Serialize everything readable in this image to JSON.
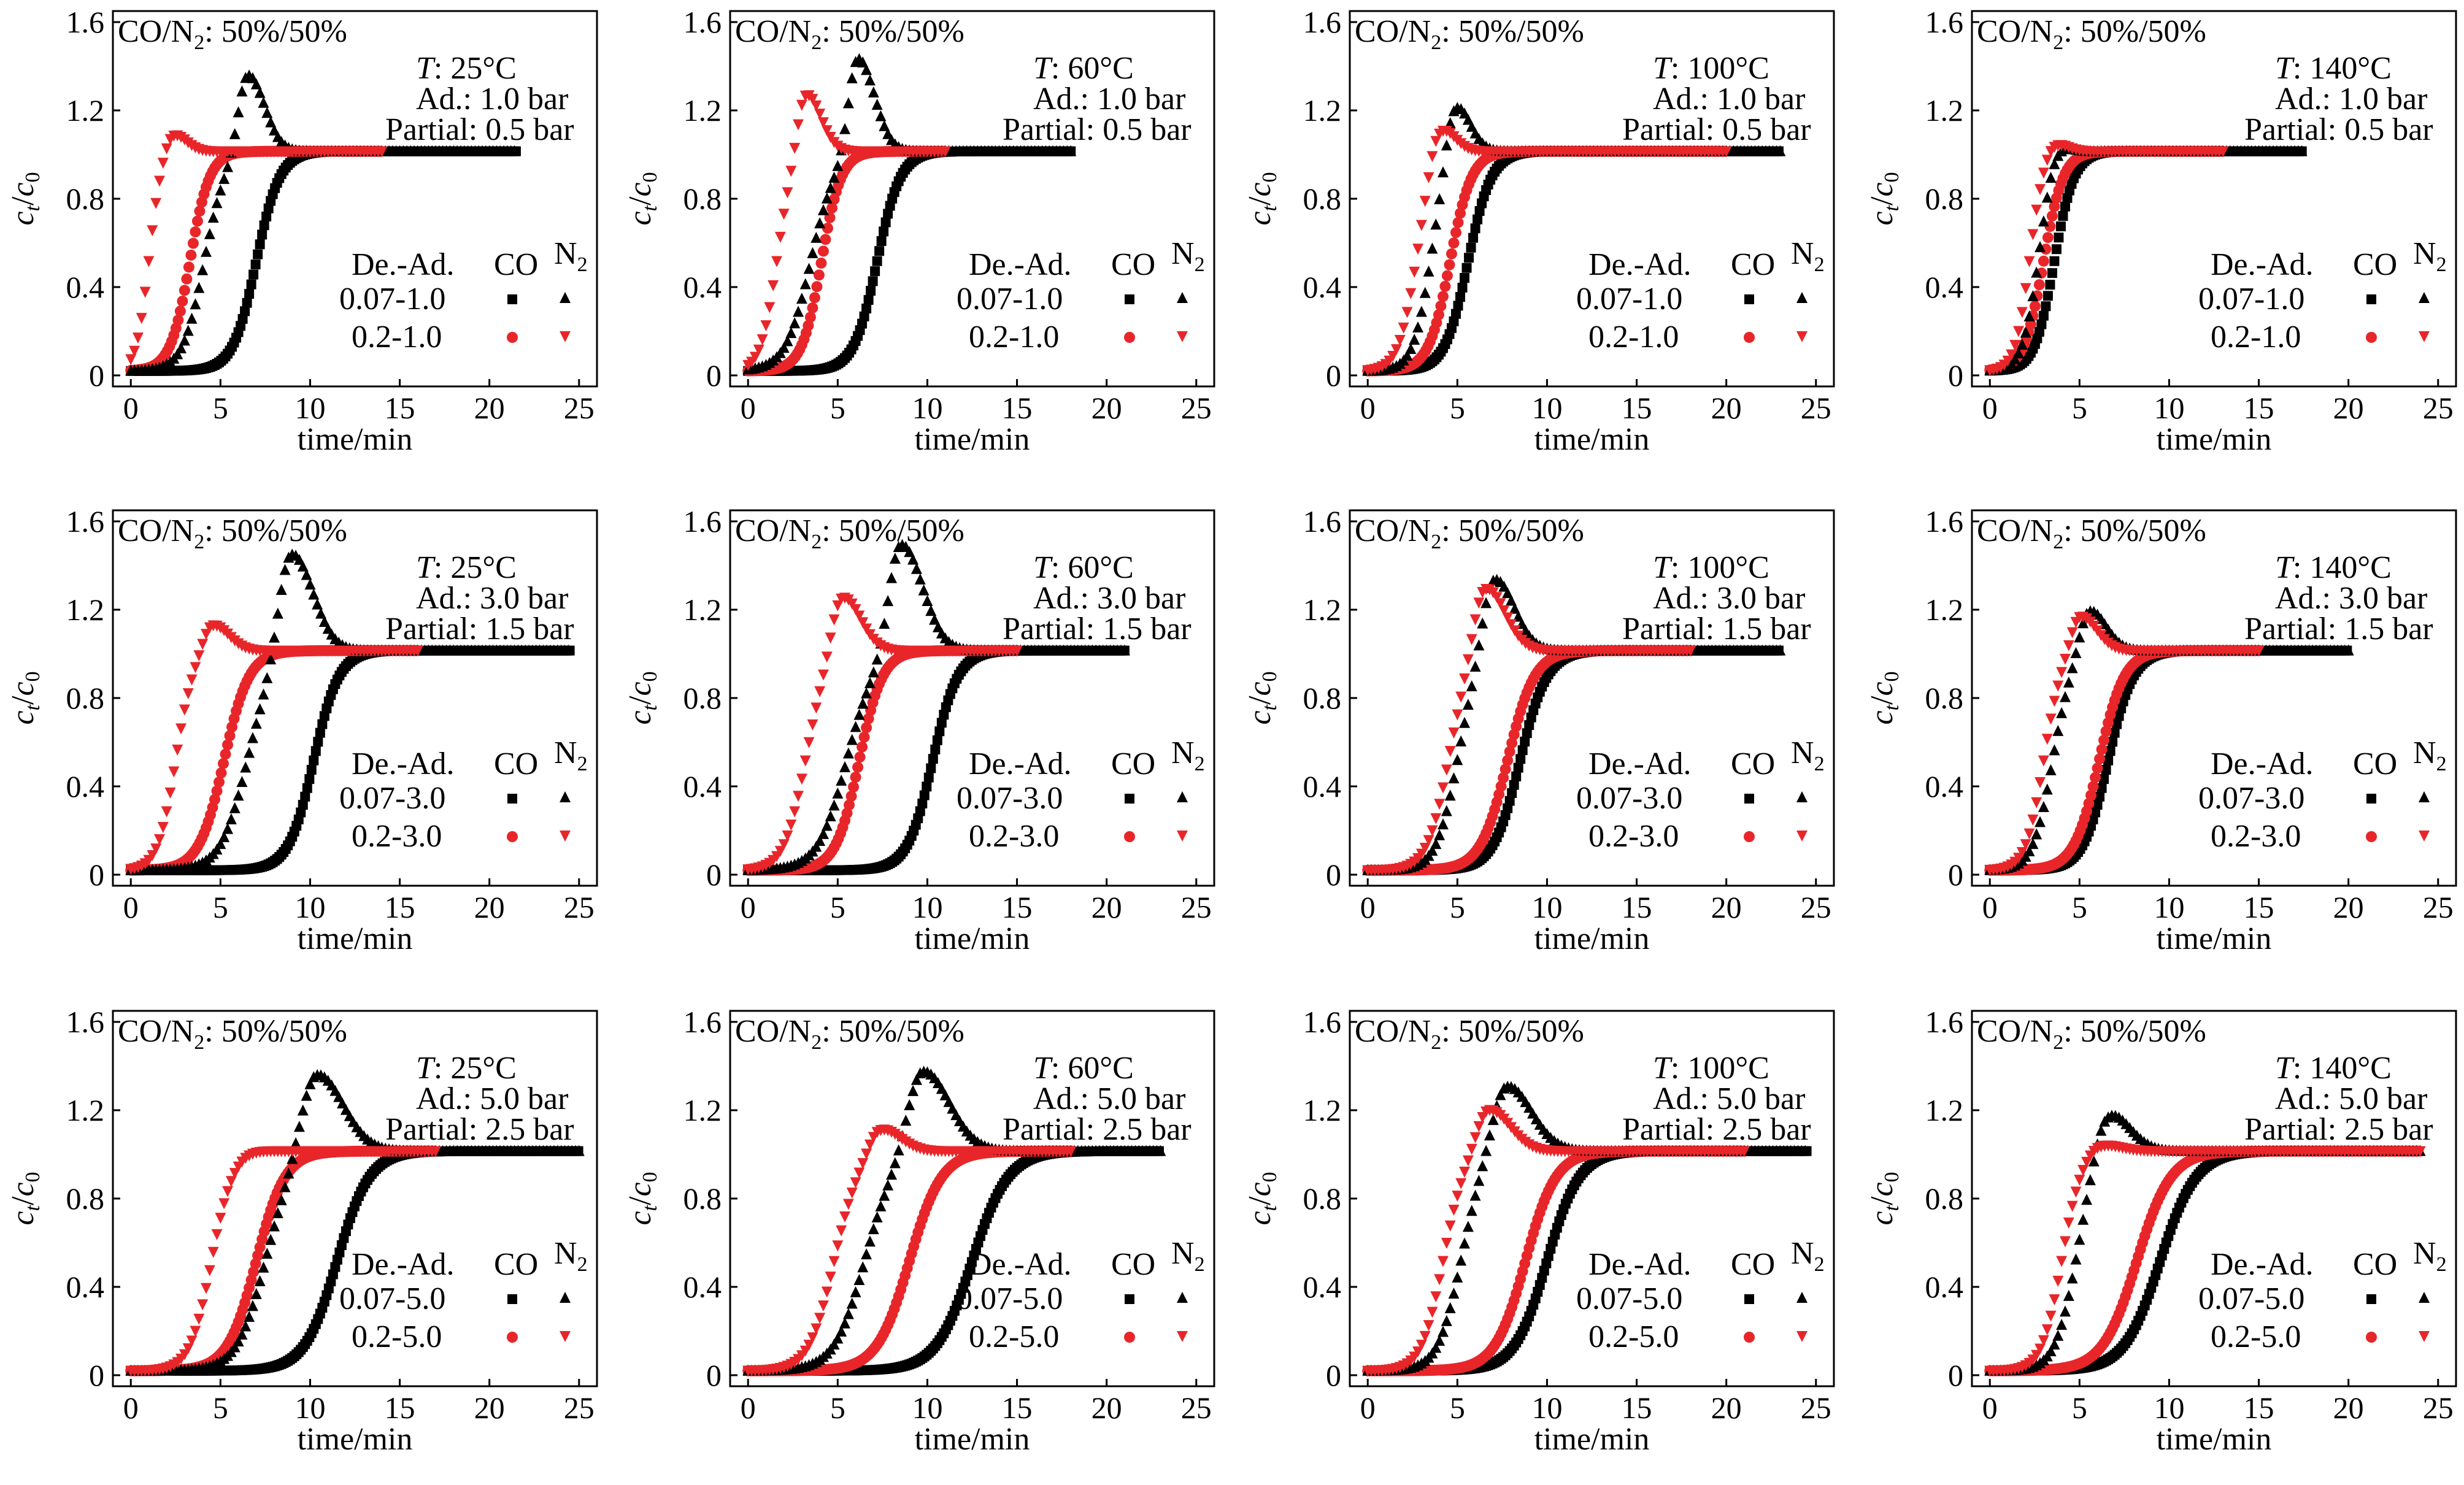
{
  "figure": {
    "shared": {
      "gas_label": "CO/N",
      "gas_sub": "2",
      "gas_ratio": ": 50%/50%",
      "xlabel": "time/min",
      "ylabel_c": "c",
      "ylabel_t": "t",
      "ylabel_slash": "/",
      "ylabel_0": "0",
      "legend_header": "De.-Ad.",
      "legend_co": "CO",
      "legend_n2": "N",
      "legend_n2_sub": "2",
      "temp_prefix": "T",
      "ad_prefix": "Ad.: ",
      "partial_prefix": "Partial: ",
      "x_ticks": [
        "0",
        "5",
        "10",
        "15",
        "20",
        "25"
      ],
      "y_ticks": [
        "0",
        "0.4",
        "0.8",
        "1.2",
        "1.6"
      ]
    },
    "colors": {
      "low_desorption": "#000000",
      "high_desorption": "#e8262a",
      "axis": "#000000"
    },
    "markers": {
      "co": "square / circle",
      "n2": "triangle-up / triangle-down"
    }
  },
  "chart_data": [
    {
      "type": "scatter",
      "row": 0,
      "col": 0,
      "temperature": ": 25°C",
      "ad_pressure": "1.0 bar",
      "partial_pressure": "0.5 bar",
      "ad_label": "1.0",
      "legend_rows": [
        "0.07-1.0",
        "0.2-1.0"
      ],
      "xlim": [
        -1,
        26
      ],
      "ylim": [
        -0.05,
        1.65
      ],
      "x_end": [
        21.5,
        14.0
      ],
      "series": [
        {
          "name": "0.07-1.0 CO",
          "gas": "CO",
          "desorption": "0.07",
          "t_bt": 7.0,
          "width": 0.65,
          "peak_t": null,
          "peak_h": null,
          "peak_w": 1.0
        },
        {
          "name": "0.07-1.0 N2",
          "gas": "N2",
          "desorption": "0.07",
          "t_bt": 4.1,
          "width": 0.6,
          "peak_t": 6.5,
          "peak_h": 0.36,
          "peak_w": 1.0
        },
        {
          "name": "0.2-1.0 CO",
          "gas": "CO",
          "desorption": "0.2",
          "t_bt": 3.3,
          "width": 0.55,
          "peak_t": null,
          "peak_h": null,
          "peak_w": 1.0
        },
        {
          "name": "0.2-1.0 N2",
          "gas": "N2",
          "desorption": "0.2",
          "t_bt": 1.0,
          "width": 0.35,
          "peak_t": 2.3,
          "peak_h": 0.09,
          "peak_w": 0.8
        }
      ]
    },
    {
      "type": "scatter",
      "row": 0,
      "col": 1,
      "temperature": ": 60°C",
      "ad_pressure": "1.0 bar",
      "partial_pressure": "0.5 bar",
      "ad_label": "1.0",
      "legend_rows": [
        "0.07-1.0",
        "0.2-1.0"
      ],
      "xlim": [
        -1,
        26
      ],
      "ylim": [
        -0.05,
        1.65
      ],
      "x_end": [
        18.0,
        11.0
      ],
      "series": [
        {
          "name": "0.07-1.0 CO",
          "gas": "CO",
          "desorption": "0.07",
          "t_bt": 7.2,
          "width": 0.65,
          "peak_t": null,
          "peak_h": null,
          "peak_w": 1.0
        },
        {
          "name": "0.07-1.0 N2",
          "gas": "N2",
          "desorption": "0.07",
          "t_bt": 3.5,
          "width": 0.7,
          "peak_t": 6.1,
          "peak_h": 0.44,
          "peak_w": 1.0
        },
        {
          "name": "0.2-1.0 CO",
          "gas": "CO",
          "desorption": "0.2",
          "t_bt": 4.1,
          "width": 0.55,
          "peak_t": null,
          "peak_h": null,
          "peak_w": 1.0
        },
        {
          "name": "0.2-1.0 N2",
          "gas": "N2",
          "desorption": "0.2",
          "t_bt": 1.6,
          "width": 0.45,
          "peak_t": 3.2,
          "peak_h": 0.28,
          "peak_w": 0.9
        }
      ]
    },
    {
      "type": "scatter",
      "row": 0,
      "col": 2,
      "temperature": ": 100°C",
      "ad_pressure": "1.0 bar",
      "partial_pressure": "0.5 bar",
      "ad_label": "1.0",
      "legend_rows": [
        "0.07-1.0",
        "0.2-1.0"
      ],
      "xlim": [
        -1,
        26
      ],
      "ylim": [
        -0.05,
        1.65
      ],
      "x_end": [
        23.0,
        20.0
      ],
      "series": [
        {
          "name": "0.07-1.0 CO",
          "gas": "CO",
          "desorption": "0.07",
          "t_bt": 5.6,
          "width": 0.65,
          "peak_t": null,
          "peak_h": null,
          "peak_w": 1.0
        },
        {
          "name": "0.07-1.0 N2",
          "gas": "N2",
          "desorption": "0.07",
          "t_bt": 3.5,
          "width": 0.5,
          "peak_t": 4.8,
          "peak_h": 0.25,
          "peak_w": 0.9
        },
        {
          "name": "0.2-1.0 CO",
          "gas": "CO",
          "desorption": "0.2",
          "t_bt": 4.6,
          "width": 0.6,
          "peak_t": null,
          "peak_h": null,
          "peak_w": 1.0
        },
        {
          "name": "0.2-1.0 N2",
          "gas": "N2",
          "desorption": "0.2",
          "t_bt": 2.7,
          "width": 0.5,
          "peak_t": 3.9,
          "peak_h": 0.15,
          "peak_w": 0.9
        }
      ]
    },
    {
      "type": "scatter",
      "row": 0,
      "col": 3,
      "temperature": ": 140°C",
      "ad_pressure": "1.0 bar",
      "partial_pressure": "0.5 bar",
      "ad_label": "1.0",
      "legend_rows": [
        "0.07-1.0",
        "0.2-1.0"
      ],
      "xlim": [
        -1,
        26
      ],
      "ylim": [
        -0.05,
        1.65
      ],
      "x_end": [
        17.5,
        13.0
      ],
      "series": [
        {
          "name": "0.07-1.0 CO",
          "gas": "CO",
          "desorption": "0.07",
          "t_bt": 3.6,
          "width": 0.55,
          "peak_t": null,
          "peak_h": null,
          "peak_w": 1.0
        },
        {
          "name": "0.07-1.0 N2",
          "gas": "N2",
          "desorption": "0.07",
          "t_bt": 2.7,
          "width": 0.45,
          "peak_t": 3.6,
          "peak_h": 0.06,
          "peak_w": 0.8
        },
        {
          "name": "0.2-1.0 CO",
          "gas": "CO",
          "desorption": "0.2",
          "t_bt": 3.0,
          "width": 0.55,
          "peak_t": null,
          "peak_h": null,
          "peak_w": 1.0
        },
        {
          "name": "0.2-1.0 N2",
          "gas": "N2",
          "desorption": "0.2",
          "t_bt": 2.2,
          "width": 0.4,
          "peak_t": 3.5,
          "peak_h": 0.05,
          "peak_w": 0.8
        }
      ]
    },
    {
      "type": "scatter",
      "row": 1,
      "col": 0,
      "temperature": ": 25°C",
      "ad_pressure": "3.0 bar",
      "partial_pressure": "1.5 bar",
      "ad_label": "3.0",
      "legend_rows": [
        "0.07-3.0",
        "0.2-3.0"
      ],
      "xlim": [
        -1,
        26
      ],
      "ylim": [
        -0.05,
        1.65
      ],
      "x_end": [
        24.5,
        16.0
      ],
      "series": [
        {
          "name": "0.07-3.0 CO",
          "gas": "CO",
          "desorption": "0.07",
          "t_bt": 10.2,
          "width": 0.7,
          "peak_t": null,
          "peak_h": null,
          "peak_w": 1.0
        },
        {
          "name": "0.07-3.0 N2",
          "gas": "N2",
          "desorption": "0.07",
          "t_bt": 6.5,
          "width": 0.75,
          "peak_t": 8.9,
          "peak_h": 0.47,
          "peak_w": 1.3
        },
        {
          "name": "0.2-3.0 CO",
          "gas": "CO",
          "desorption": "0.2",
          "t_bt": 5.2,
          "width": 0.7,
          "peak_t": null,
          "peak_h": null,
          "peak_w": 1.0
        },
        {
          "name": "0.2-3.0 N2",
          "gas": "N2",
          "desorption": "0.2",
          "t_bt": 2.5,
          "width": 0.5,
          "peak_t": 4.5,
          "peak_h": 0.13,
          "peak_w": 1.0
        }
      ]
    },
    {
      "type": "scatter",
      "row": 1,
      "col": 1,
      "temperature": ": 60°C",
      "ad_pressure": "3.0 bar",
      "partial_pressure": "1.5 bar",
      "ad_label": "3.0",
      "legend_rows": [
        "0.07-3.0",
        "0.2-3.0"
      ],
      "xlim": [
        -1,
        26
      ],
      "ylim": [
        -0.05,
        1.65
      ],
      "x_end": [
        21.0,
        15.0
      ],
      "series": [
        {
          "name": "0.07-3.0 CO",
          "gas": "CO",
          "desorption": "0.07",
          "t_bt": 10.3,
          "width": 0.7,
          "peak_t": null,
          "peak_h": null,
          "peak_w": 1.0
        },
        {
          "name": "0.07-3.0 N2",
          "gas": "N2",
          "desorption": "0.07",
          "t_bt": 5.5,
          "width": 0.8,
          "peak_t": 8.5,
          "peak_h": 0.5,
          "peak_w": 1.3
        },
        {
          "name": "0.2-3.0 CO",
          "gas": "CO",
          "desorption": "0.2",
          "t_bt": 6.2,
          "width": 0.65,
          "peak_t": null,
          "peak_h": null,
          "peak_w": 1.0
        },
        {
          "name": "0.2-3.0 N2",
          "gas": "N2",
          "desorption": "0.2",
          "t_bt": 3.2,
          "width": 0.6,
          "peak_t": 5.2,
          "peak_h": 0.27,
          "peak_w": 1.1
        }
      ]
    },
    {
      "type": "scatter",
      "row": 1,
      "col": 2,
      "temperature": ": 100°C",
      "ad_pressure": "3.0 bar",
      "partial_pressure": "1.5 bar",
      "ad_label": "3.0",
      "legend_rows": [
        "0.07-3.0",
        "0.2-3.0"
      ],
      "xlim": [
        -1,
        26
      ],
      "ylim": [
        -0.05,
        1.65
      ],
      "x_end": [
        23.0,
        18.0
      ],
      "series": [
        {
          "name": "0.07-3.0 CO",
          "gas": "CO",
          "desorption": "0.07",
          "t_bt": 8.5,
          "width": 0.75,
          "peak_t": null,
          "peak_h": null,
          "peak_w": 1.0
        },
        {
          "name": "0.07-3.0 N2",
          "gas": "N2",
          "desorption": "0.07",
          "t_bt": 5.0,
          "width": 0.6,
          "peak_t": 7.0,
          "peak_h": 0.35,
          "peak_w": 1.2
        },
        {
          "name": "0.2-3.0 CO",
          "gas": "CO",
          "desorption": "0.2",
          "t_bt": 7.8,
          "width": 0.75,
          "peak_t": null,
          "peak_h": null,
          "peak_w": 1.0
        },
        {
          "name": "0.2-3.0 N2",
          "gas": "N2",
          "desorption": "0.2",
          "t_bt": 4.5,
          "width": 0.6,
          "peak_t": 6.5,
          "peak_h": 0.31,
          "peak_w": 1.2
        }
      ]
    },
    {
      "type": "scatter",
      "row": 1,
      "col": 3,
      "temperature": ": 140°C",
      "ad_pressure": "3.0 bar",
      "partial_pressure": "1.5 bar",
      "ad_label": "3.0",
      "legend_rows": [
        "0.07-3.0",
        "0.2-3.0"
      ],
      "xlim": [
        -1,
        26
      ],
      "ylim": [
        -0.05,
        1.65
      ],
      "x_end": [
        20.0,
        15.0
      ],
      "series": [
        {
          "name": "0.07-3.0 CO",
          "gas": "CO",
          "desorption": "0.07",
          "t_bt": 6.6,
          "width": 0.7,
          "peak_t": null,
          "peak_h": null,
          "peak_w": 1.0
        },
        {
          "name": "0.07-3.0 N2",
          "gas": "N2",
          "desorption": "0.07",
          "t_bt": 3.5,
          "width": 0.55,
          "peak_t": 5.5,
          "peak_h": 0.2,
          "peak_w": 1.0
        },
        {
          "name": "0.2-3.0 CO",
          "gas": "CO",
          "desorption": "0.2",
          "t_bt": 6.1,
          "width": 0.7,
          "peak_t": null,
          "peak_h": null,
          "peak_w": 1.0
        },
        {
          "name": "0.2-3.0 N2",
          "gas": "N2",
          "desorption": "0.2",
          "t_bt": 3.0,
          "width": 0.5,
          "peak_t": 5.0,
          "peak_h": 0.17,
          "peak_w": 1.0
        }
      ]
    },
    {
      "type": "scatter",
      "row": 2,
      "col": 0,
      "temperature": ": 25°C",
      "ad_pressure": "5.0 bar",
      "partial_pressure": "2.5 bar",
      "ad_label": "5.0",
      "legend_rows": [
        "0.07-5.0",
        "0.2-5.0"
      ],
      "xlim": [
        -1,
        26
      ],
      "ylim": [
        -0.05,
        1.65
      ],
      "x_end": [
        25.0,
        17.0
      ],
      "series": [
        {
          "name": "0.07-5.0 CO",
          "gas": "CO",
          "desorption": "0.07",
          "t_bt": 11.5,
          "width": 0.9,
          "peak_t": null,
          "peak_h": null,
          "peak_w": 1.0
        },
        {
          "name": "0.07-5.0 N2",
          "gas": "N2",
          "desorption": "0.07",
          "t_bt": 7.5,
          "width": 0.8,
          "peak_t": 10.3,
          "peak_h": 0.37,
          "peak_w": 1.6
        },
        {
          "name": "0.2-5.0 CO",
          "gas": "CO",
          "desorption": "0.2",
          "t_bt": 7.0,
          "width": 0.8,
          "peak_t": null,
          "peak_h": null,
          "peak_w": 1.0
        },
        {
          "name": "0.2-5.0 N2",
          "gas": "N2",
          "desorption": "0.2",
          "t_bt": 4.5,
          "width": 0.6,
          "peak_t": 6.5,
          "peak_h": 0.01,
          "peak_w": 1.0
        }
      ]
    },
    {
      "type": "scatter",
      "row": 2,
      "col": 1,
      "temperature": ": 60°C",
      "ad_pressure": "5.0 bar",
      "partial_pressure": "2.5 bar",
      "ad_label": "5.0",
      "legend_rows": [
        "0.07-5.0",
        "0.2-5.0"
      ],
      "xlim": [
        -1,
        26
      ],
      "ylim": [
        -0.05,
        1.65
      ],
      "x_end": [
        23.0,
        18.0
      ],
      "series": [
        {
          "name": "0.07-5.0 CO",
          "gas": "CO",
          "desorption": "0.07",
          "t_bt": 12.5,
          "width": 1.0,
          "peak_t": null,
          "peak_h": null,
          "peak_w": 1.0
        },
        {
          "name": "0.07-5.0 N2",
          "gas": "N2",
          "desorption": "0.07",
          "t_bt": 6.5,
          "width": 0.85,
          "peak_t": 9.7,
          "peak_h": 0.38,
          "peak_w": 1.6
        },
        {
          "name": "0.2-5.0 CO",
          "gas": "CO",
          "desorption": "0.2",
          "t_bt": 9.0,
          "width": 0.9,
          "peak_t": null,
          "peak_h": null,
          "peak_w": 1.0
        },
        {
          "name": "0.2-5.0 N2",
          "gas": "N2",
          "desorption": "0.2",
          "t_bt": 4.8,
          "width": 0.7,
          "peak_t": 7.3,
          "peak_h": 0.12,
          "peak_w": 1.2
        }
      ]
    },
    {
      "type": "scatter",
      "row": 2,
      "col": 2,
      "temperature": ": 100°C",
      "ad_pressure": "5.0 bar",
      "partial_pressure": "2.5 bar",
      "ad_label": "5.0",
      "legend_rows": [
        "0.07-5.0",
        "0.2-5.0"
      ],
      "xlim": [
        -1,
        26
      ],
      "ylim": [
        -0.05,
        1.65
      ],
      "x_end": [
        24.5,
        21.0
      ],
      "series": [
        {
          "name": "0.07-5.0 CO",
          "gas": "CO",
          "desorption": "0.07",
          "t_bt": 10.0,
          "width": 0.9,
          "peak_t": null,
          "peak_h": null,
          "peak_w": 1.0
        },
        {
          "name": "0.07-5.0 N2",
          "gas": "N2",
          "desorption": "0.07",
          "t_bt": 5.2,
          "width": 0.65,
          "peak_t": 7.7,
          "peak_h": 0.31,
          "peak_w": 1.5
        },
        {
          "name": "0.2-5.0 CO",
          "gas": "CO",
          "desorption": "0.2",
          "t_bt": 8.8,
          "width": 0.85,
          "peak_t": null,
          "peak_h": null,
          "peak_w": 1.0
        },
        {
          "name": "0.2-5.0 N2",
          "gas": "N2",
          "desorption": "0.2",
          "t_bt": 4.2,
          "width": 0.6,
          "peak_t": 6.7,
          "peak_h": 0.2,
          "peak_w": 1.3
        }
      ]
    },
    {
      "type": "scatter",
      "row": 2,
      "col": 3,
      "temperature": ": 140°C",
      "ad_pressure": "5.0 bar",
      "partial_pressure": "2.5 bar",
      "ad_label": "5.0",
      "legend_rows": [
        "0.07-5.0",
        "0.2-5.0"
      ],
      "xlim": [
        -1,
        26
      ],
      "ylim": [
        -0.05,
        1.65
      ],
      "x_end": [
        24.0,
        24.0
      ],
      "series": [
        {
          "name": "0.07-5.0 CO",
          "gas": "CO",
          "desorption": "0.07",
          "t_bt": 9.5,
          "width": 1.0,
          "peak_t": null,
          "peak_h": null,
          "peak_w": 1.0
        },
        {
          "name": "0.07-5.0 N2",
          "gas": "N2",
          "desorption": "0.07",
          "t_bt": 4.8,
          "width": 0.6,
          "peak_t": 6.5,
          "peak_h": 0.2,
          "peak_w": 1.3
        },
        {
          "name": "0.2-5.0 CO",
          "gas": "CO",
          "desorption": "0.2",
          "t_bt": 8.2,
          "width": 0.95,
          "peak_t": null,
          "peak_h": null,
          "peak_w": 1.0
        },
        {
          "name": "0.2-5.0 N2",
          "gas": "N2",
          "desorption": "0.2",
          "t_bt": 4.0,
          "width": 0.55,
          "peak_t": 6.0,
          "peak_h": 0.04,
          "peak_w": 1.2
        }
      ]
    }
  ]
}
